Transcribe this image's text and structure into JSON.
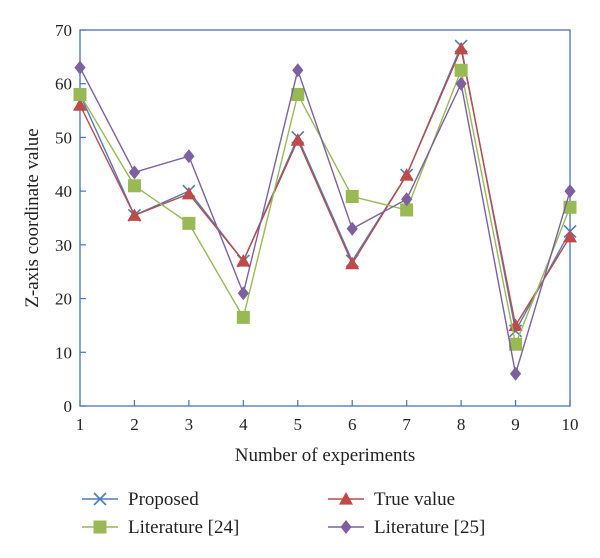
{
  "chart_data": {
    "type": "line",
    "xlabel": "Number of experiments",
    "ylabel": "Z-axis coordinate value",
    "x": [
      1,
      2,
      3,
      4,
      5,
      6,
      7,
      8,
      9,
      10
    ],
    "xlim": [
      1,
      10
    ],
    "ylim": [
      0,
      70
    ],
    "yticks": [
      0,
      10,
      20,
      30,
      40,
      50,
      60,
      70
    ],
    "grid": false,
    "legend_position": "bottom",
    "series": [
      {
        "name": "Proposed",
        "marker": "x",
        "color": "#4a7ebb",
        "values": [
          58,
          35.5,
          40,
          27,
          50,
          27,
          43,
          67,
          14,
          32.5
        ]
      },
      {
        "name": "True value",
        "marker": "triangle",
        "color": "#be4b48",
        "values": [
          56,
          35.5,
          39.5,
          27,
          49.5,
          26.5,
          43,
          66.5,
          15,
          31.5
        ]
      },
      {
        "name": "Literature [24]",
        "marker": "square",
        "color": "#98b954",
        "values": [
          58,
          41,
          34,
          16.5,
          58,
          39,
          36.5,
          62.5,
          11.5,
          37
        ]
      },
      {
        "name": "Literature [25]",
        "marker": "diamond",
        "color": "#7d60a0",
        "values": [
          63,
          43.5,
          46.5,
          21,
          62.5,
          33,
          38.5,
          60,
          6,
          40
        ]
      }
    ]
  }
}
